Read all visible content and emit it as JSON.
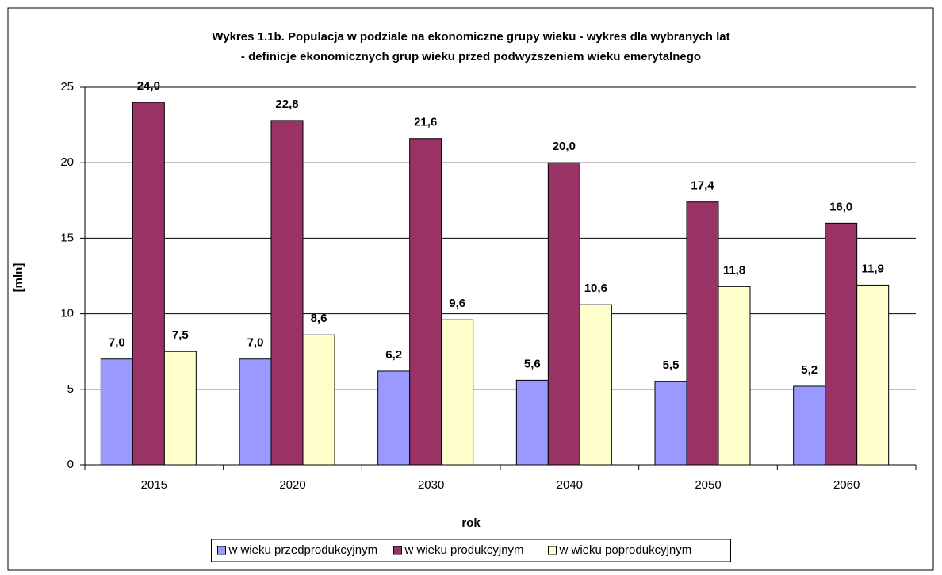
{
  "chart_data": {
    "type": "bar",
    "title": [
      "Wykres 1.1b. Populacja w podziale na ekonomiczne grupy wieku - wykres dla wybranych lat",
      "- definicje ekonomicznych grup wieku przed podwyższeniem wieku emerytalnego"
    ],
    "x_label": "rok",
    "y_label": "[mln]",
    "categories": [
      "2015",
      "2020",
      "2030",
      "2040",
      "2050",
      "2060"
    ],
    "series": [
      {
        "name": "w wieku przedprodukcyjnym",
        "color": "#9999ff",
        "values": [
          7.0,
          7.0,
          6.2,
          5.6,
          5.5,
          5.2
        ],
        "value_labels": [
          "7,0",
          "7,0",
          "6,2",
          "5,6",
          "5,5",
          "5,2"
        ]
      },
      {
        "name": "w wieku produkcyjnym",
        "color": "#993366",
        "values": [
          24.0,
          22.8,
          21.6,
          20.0,
          17.4,
          16.0
        ],
        "value_labels": [
          "24,0",
          "22,8",
          "21,6",
          "20,0",
          "17,4",
          "16,0"
        ]
      },
      {
        "name": "w wieku poprodukcyjnym",
        "color": "#ffffcc",
        "values": [
          7.5,
          8.6,
          9.6,
          10.6,
          11.8,
          11.9
        ],
        "value_labels": [
          "7,5",
          "8,6",
          "9,6",
          "10,6",
          "11,8",
          "11,9"
        ]
      }
    ],
    "ylim": [
      0,
      25
    ],
    "yticks": [
      0,
      5,
      10,
      15,
      20,
      25
    ],
    "grid": true,
    "legend": "bottom"
  }
}
